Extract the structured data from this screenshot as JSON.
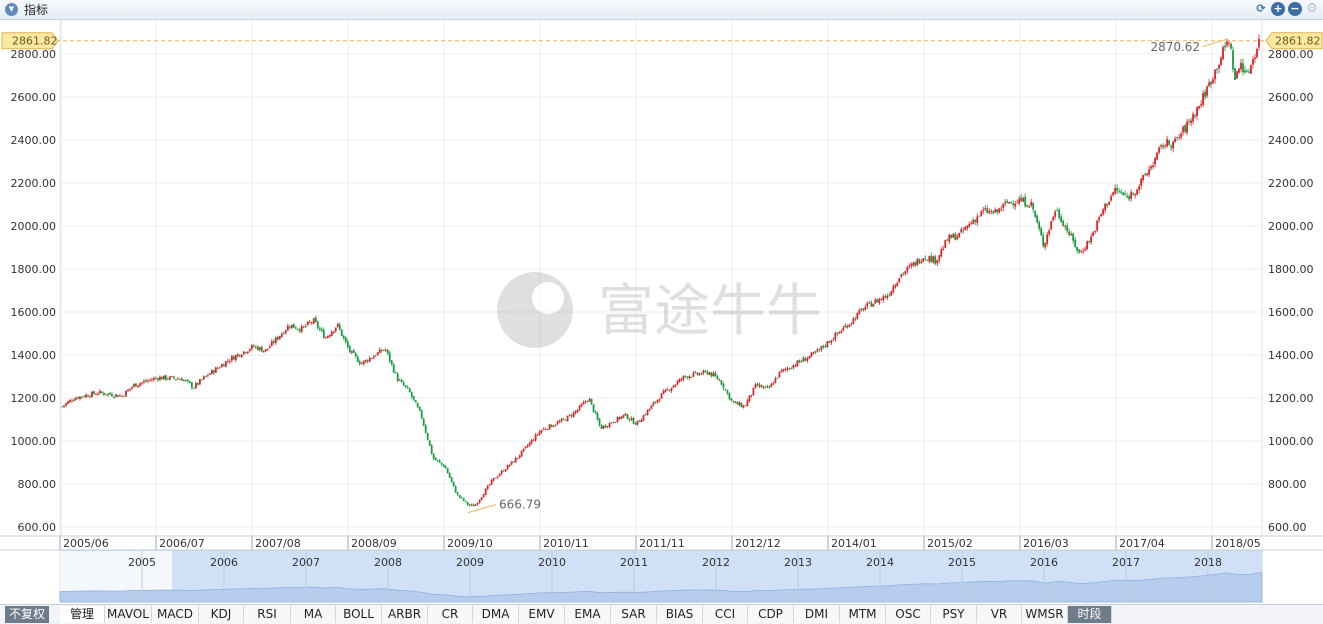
{
  "header": {
    "title": "指标"
  },
  "chart_data": {
    "type": "candlestick",
    "y_ticks": [
      "2800.00",
      "2600.00",
      "2400.00",
      "2200.00",
      "2000.00",
      "1800.00",
      "1600.00",
      "1400.00",
      "1200.00",
      "1000.00",
      "800.00",
      "600.00"
    ],
    "ylim": [
      570,
      2900
    ],
    "x_ticks": [
      "2005/06",
      "2006/07",
      "2007/08",
      "2008/09",
      "2009/10",
      "2010/11",
      "2011/11",
      "2012/12",
      "2014/01",
      "2015/02",
      "2016/03",
      "2017/04",
      "2018/05"
    ],
    "current_price": "2861.82",
    "max_label": "2870.62",
    "min_label": "666.79",
    "trend_points": [
      [
        0,
        1160
      ],
      [
        0.01,
        1200
      ],
      [
        0.03,
        1225
      ],
      [
        0.05,
        1210
      ],
      [
        0.06,
        1260
      ],
      [
        0.08,
        1295
      ],
      [
        0.1,
        1290
      ],
      [
        0.11,
        1250
      ],
      [
        0.12,
        1300
      ],
      [
        0.14,
        1380
      ],
      [
        0.16,
        1440
      ],
      [
        0.17,
        1420
      ],
      [
        0.18,
        1480
      ],
      [
        0.19,
        1540
      ],
      [
        0.2,
        1520
      ],
      [
        0.21,
        1560
      ],
      [
        0.22,
        1480
      ],
      [
        0.23,
        1540
      ],
      [
        0.24,
        1420
      ],
      [
        0.25,
        1360
      ],
      [
        0.27,
        1430
      ],
      [
        0.28,
        1290
      ],
      [
        0.29,
        1230
      ],
      [
        0.3,
        1120
      ],
      [
        0.31,
        920
      ],
      [
        0.32,
        880
      ],
      [
        0.33,
        750
      ],
      [
        0.34,
        700
      ],
      [
        0.345,
        700
      ],
      [
        0.36,
        820
      ],
      [
        0.38,
        920
      ],
      [
        0.4,
        1050
      ],
      [
        0.42,
        1100
      ],
      [
        0.43,
        1140
      ],
      [
        0.44,
        1200
      ],
      [
        0.45,
        1060
      ],
      [
        0.47,
        1120
      ],
      [
        0.48,
        1080
      ],
      [
        0.5,
        1210
      ],
      [
        0.52,
        1300
      ],
      [
        0.54,
        1320
      ],
      [
        0.55,
        1280
      ],
      [
        0.56,
        1180
      ],
      [
        0.57,
        1160
      ],
      [
        0.58,
        1260
      ],
      [
        0.59,
        1240
      ],
      [
        0.6,
        1320
      ],
      [
        0.62,
        1380
      ],
      [
        0.63,
        1410
      ],
      [
        0.64,
        1460
      ],
      [
        0.66,
        1560
      ],
      [
        0.67,
        1620
      ],
      [
        0.69,
        1680
      ],
      [
        0.7,
        1770
      ],
      [
        0.72,
        1860
      ],
      [
        0.73,
        1840
      ],
      [
        0.74,
        1940
      ],
      [
        0.75,
        1960
      ],
      [
        0.76,
        2020
      ],
      [
        0.77,
        2070
      ],
      [
        0.78,
        2060
      ],
      [
        0.79,
        2110
      ],
      [
        0.8,
        2120
      ],
      [
        0.81,
        2100
      ],
      [
        0.82,
        1910
      ],
      [
        0.83,
        2080
      ],
      [
        0.84,
        1980
      ],
      [
        0.85,
        1870
      ],
      [
        0.86,
        1950
      ],
      [
        0.87,
        2080
      ],
      [
        0.88,
        2170
      ],
      [
        0.89,
        2130
      ],
      [
        0.9,
        2190
      ],
      [
        0.91,
        2280
      ],
      [
        0.92,
        2380
      ],
      [
        0.93,
        2390
      ],
      [
        0.94,
        2470
      ],
      [
        0.95,
        2560
      ],
      [
        0.96,
        2680
      ],
      [
        0.97,
        2810
      ],
      [
        0.975,
        2870
      ],
      [
        0.98,
        2680
      ],
      [
        0.985,
        2760
      ],
      [
        0.99,
        2700
      ],
      [
        1.0,
        2860
      ]
    ],
    "navigator": {
      "years": [
        "2005",
        "2006",
        "2007",
        "2008",
        "2009",
        "2010",
        "2011",
        "2012",
        "2013",
        "2014",
        "2015",
        "2016",
        "2017",
        "2018"
      ]
    },
    "colors": {
      "up": "#d6262a",
      "down": "#169b3e",
      "price_line": "#f0b05a",
      "price_tag_bg": "#fbe9a2",
      "grid": "#eeeeee",
      "navigator_fill": "#cfe0f7"
    }
  },
  "watermark": {
    "text": "富途牛牛"
  },
  "bottombar": {
    "adjust_label": "不复权",
    "tabs": [
      "管理",
      "MAVOL",
      "MACD",
      "KDJ",
      "RSI",
      "MA",
      "BOLL",
      "ARBR",
      "CR",
      "DMA",
      "EMV",
      "EMA",
      "SAR",
      "BIAS",
      "CCI",
      "CDP",
      "DMI",
      "MTM",
      "OSC",
      "PSY",
      "VR",
      "WMSR",
      "时段"
    ]
  }
}
